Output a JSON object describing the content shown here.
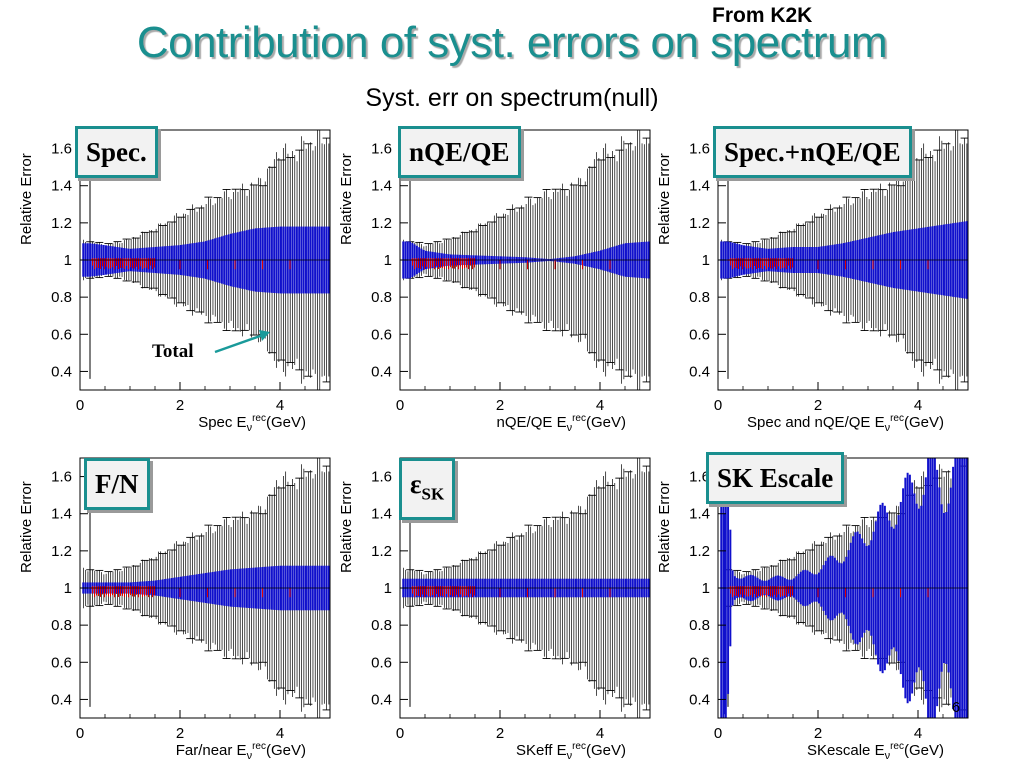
{
  "header": {
    "title": "Contribution of syst. errors on spectrum",
    "source_note": "From K2K",
    "subtitle": "Syst. err on spectrum(null)"
  },
  "colors": {
    "title": "#1a8f8f",
    "component_band": "#1010cc",
    "total_errorbars": "#000000",
    "stat_points": "#e00000",
    "label_border": "#1a8f8f",
    "annotation_arrow": "#1a9a9a"
  },
  "chart_data": [
    {
      "type": "scatter",
      "panel_label": "Spec.",
      "xlabel_prefix": "Spec E",
      "xlabel_sub": "ν",
      "xlabel_sup": "rec",
      "xlabel_suffix": "(GeV)",
      "ylabel": "Relative Error",
      "xlim": [
        0,
        5
      ],
      "ylim": [
        0.3,
        1.7
      ],
      "xticks": [
        "0",
        "2",
        "4"
      ],
      "yticks": [
        "0.4",
        "0.6",
        "0.8",
        "1",
        "1.2",
        "1.4",
        "1.6"
      ],
      "component_error": {
        "x": [
          0.2,
          0.5,
          1.0,
          1.5,
          2.0,
          2.5,
          3.0,
          3.5,
          4.0,
          4.5,
          5.0
        ],
        "half_width": [
          0.09,
          0.08,
          0.06,
          0.07,
          0.08,
          0.1,
          0.14,
          0.17,
          0.18,
          0.18,
          0.18
        ]
      },
      "total_error": {
        "x": [
          0.2,
          0.5,
          1.0,
          1.5,
          2.0,
          2.5,
          3.0,
          3.5,
          3.8,
          4.0,
          4.2,
          4.5,
          4.8,
          5.0
        ],
        "half_width": [
          0.1,
          0.08,
          0.11,
          0.17,
          0.24,
          0.3,
          0.36,
          0.4,
          0.48,
          0.6,
          0.56,
          0.62,
          0.65,
          0.65
        ]
      },
      "annotation": "Total"
    },
    {
      "type": "scatter",
      "panel_label": "nQE/QE",
      "xlabel_prefix": "nQE/QE E",
      "xlabel_sub": "ν",
      "xlabel_sup": "rec",
      "xlabel_suffix": "(GeV)",
      "ylabel": "Relative Error",
      "xlim": [
        0,
        5
      ],
      "ylim": [
        0.3,
        1.7
      ],
      "xticks": [
        "0",
        "2",
        "4"
      ],
      "yticks": [
        "0.4",
        "0.6",
        "0.8",
        "1",
        "1.2",
        "1.4",
        "1.6"
      ],
      "component_error": {
        "x": [
          0.2,
          0.5,
          1.0,
          1.5,
          2.0,
          2.5,
          3.0,
          3.5,
          4.0,
          4.5,
          5.0
        ],
        "half_width": [
          0.1,
          0.05,
          0.03,
          0.025,
          0.02,
          0.015,
          0.005,
          0.02,
          0.05,
          0.09,
          0.1
        ]
      },
      "total_error": {
        "x": [
          0.2,
          0.5,
          1.0,
          1.5,
          2.0,
          2.5,
          3.0,
          3.5,
          3.8,
          4.0,
          4.2,
          4.5,
          4.8,
          5.0
        ],
        "half_width": [
          0.1,
          0.08,
          0.11,
          0.17,
          0.24,
          0.3,
          0.36,
          0.4,
          0.48,
          0.6,
          0.56,
          0.62,
          0.65,
          0.65
        ]
      }
    },
    {
      "type": "scatter",
      "panel_label": "Spec.+nQE/QE",
      "xlabel_prefix": "Spec and nQE/QE E",
      "xlabel_sub": "ν",
      "xlabel_sup": "rec",
      "xlabel_suffix": "(GeV)",
      "ylabel": "Relative Error",
      "xlim": [
        0,
        5
      ],
      "ylim": [
        0.3,
        1.7
      ],
      "xticks": [
        "0",
        "2",
        "4"
      ],
      "yticks": [
        "0.4",
        "0.6",
        "0.8",
        "1",
        "1.2",
        "1.4",
        "1.6"
      ],
      "component_error": {
        "x": [
          0.2,
          0.5,
          1.0,
          1.5,
          2.0,
          2.5,
          3.0,
          3.5,
          4.0,
          4.5,
          5.0
        ],
        "half_width": [
          0.1,
          0.08,
          0.06,
          0.07,
          0.07,
          0.09,
          0.12,
          0.15,
          0.17,
          0.19,
          0.21
        ]
      },
      "total_error": {
        "x": [
          0.2,
          0.5,
          1.0,
          1.5,
          2.0,
          2.5,
          3.0,
          3.5,
          3.8,
          4.0,
          4.2,
          4.5,
          4.8,
          5.0
        ],
        "half_width": [
          0.1,
          0.08,
          0.11,
          0.17,
          0.24,
          0.3,
          0.36,
          0.4,
          0.48,
          0.6,
          0.56,
          0.62,
          0.65,
          0.65
        ]
      }
    },
    {
      "type": "scatter",
      "panel_label": "F/N",
      "xlabel_prefix": "Far/near E",
      "xlabel_sub": "ν",
      "xlabel_sup": "rec",
      "xlabel_suffix": "(GeV)",
      "ylabel": "Relative Error",
      "xlim": [
        0,
        5
      ],
      "ylim": [
        0.3,
        1.7
      ],
      "xticks": [
        "0",
        "2",
        "4"
      ],
      "yticks": [
        "0.4",
        "0.6",
        "0.8",
        "1",
        "1.2",
        "1.4",
        "1.6"
      ],
      "component_error": {
        "x": [
          0.2,
          0.5,
          1.0,
          1.5,
          2.0,
          2.5,
          3.0,
          3.5,
          4.0,
          4.5,
          5.0
        ],
        "half_width": [
          0.03,
          0.03,
          0.03,
          0.04,
          0.06,
          0.08,
          0.1,
          0.11,
          0.12,
          0.12,
          0.12
        ]
      },
      "total_error": {
        "x": [
          0.2,
          0.5,
          1.0,
          1.5,
          2.0,
          2.5,
          3.0,
          3.5,
          3.8,
          4.0,
          4.2,
          4.5,
          4.8,
          5.0
        ],
        "half_width": [
          0.1,
          0.08,
          0.11,
          0.17,
          0.24,
          0.3,
          0.36,
          0.4,
          0.48,
          0.6,
          0.56,
          0.62,
          0.65,
          0.65
        ]
      }
    },
    {
      "type": "scatter",
      "panel_label_main": "ε",
      "panel_label_sub": "SK",
      "xlabel_prefix": "SKeff E",
      "xlabel_sub": "ν",
      "xlabel_sup": "rec",
      "xlabel_suffix": "(GeV)",
      "ylabel": "Relative Error",
      "xlim": [
        0,
        5
      ],
      "ylim": [
        0.3,
        1.7
      ],
      "xticks": [
        "0",
        "2",
        "4"
      ],
      "yticks": [
        "0.4",
        "0.6",
        "0.8",
        "1",
        "1.2",
        "1.4",
        "1.6"
      ],
      "component_error": {
        "x": [
          0.2,
          0.5,
          1.0,
          1.5,
          2.0,
          2.5,
          3.0,
          3.5,
          4.0,
          4.5,
          5.0
        ],
        "half_width": [
          0.05,
          0.05,
          0.05,
          0.05,
          0.05,
          0.05,
          0.05,
          0.05,
          0.05,
          0.05,
          0.05
        ]
      },
      "total_error": {
        "x": [
          0.2,
          0.5,
          1.0,
          1.5,
          2.0,
          2.5,
          3.0,
          3.5,
          3.8,
          4.0,
          4.2,
          4.5,
          4.8,
          5.0
        ],
        "half_width": [
          0.1,
          0.08,
          0.11,
          0.17,
          0.24,
          0.3,
          0.36,
          0.4,
          0.48,
          0.6,
          0.56,
          0.62,
          0.65,
          0.65
        ]
      }
    },
    {
      "type": "scatter",
      "panel_label": "SK Escale",
      "xlabel_prefix": "SKescale E",
      "xlabel_sub": "ν",
      "xlabel_sup": "rec",
      "xlabel_suffix": "(GeV)",
      "ylabel": "Relative Error",
      "xlim": [
        0,
        5
      ],
      "ylim": [
        0.3,
        1.7
      ],
      "xticks": [
        "0",
        "2",
        "4"
      ],
      "yticks": [
        "0.4",
        "0.6",
        "0.8",
        "1",
        "1.2",
        "1.4",
        "1.6"
      ],
      "corner_tick": "6",
      "component_error": {
        "x": [
          0.15,
          0.3,
          0.5,
          1.0,
          1.5,
          2.0,
          2.5,
          3.0,
          3.5,
          4.0,
          4.2,
          4.5,
          4.8,
          5.0
        ],
        "half_width": [
          0.7,
          0.08,
          0.06,
          0.05,
          0.06,
          0.1,
          0.18,
          0.3,
          0.42,
          0.55,
          0.65,
          0.5,
          0.7,
          0.8
        ]
      },
      "total_error": {
        "x": [
          0.2,
          0.5,
          1.0,
          1.5,
          2.0,
          2.5,
          3.0,
          3.5,
          3.8,
          4.0,
          4.2,
          4.5,
          4.8,
          5.0
        ],
        "half_width": [
          0.1,
          0.08,
          0.11,
          0.17,
          0.24,
          0.3,
          0.36,
          0.4,
          0.48,
          0.6,
          0.56,
          0.62,
          0.65,
          0.65
        ]
      }
    }
  ]
}
